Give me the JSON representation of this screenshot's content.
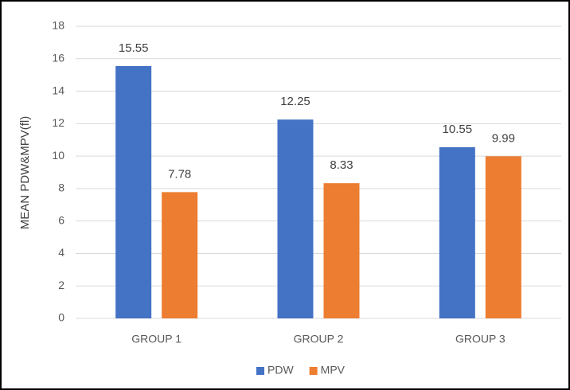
{
  "chart_data": {
    "type": "bar",
    "y_label": "MEAN PDW&MPV(fl)",
    "categories": [
      "GROUP 1",
      "GROUP 2",
      "GROUP 3"
    ],
    "series": [
      {
        "name": "PDW",
        "color": "#4472c4",
        "values": [
          15.55,
          12.25,
          10.55
        ]
      },
      {
        "name": "MPV",
        "color": "#ed7d31",
        "values": [
          7.78,
          8.33,
          9.99
        ]
      }
    ],
    "ylim": [
      0,
      18
    ],
    "yticks": [
      0,
      2,
      4,
      6,
      8,
      10,
      12,
      14,
      16,
      18
    ],
    "grid": true,
    "legend": "bottom"
  }
}
